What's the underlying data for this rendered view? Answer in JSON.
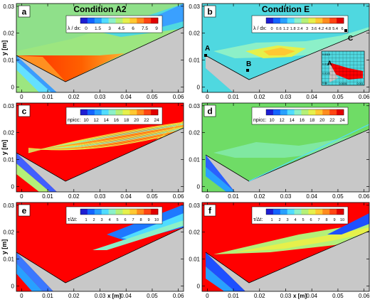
{
  "chart_data": [
    {
      "type": "heatmap",
      "panel": "a",
      "title": "Condition A2",
      "ylabel": "y [m]",
      "xlabel": "",
      "xlim": [
        -0.002,
        0.062
      ],
      "ylim": [
        -0.002,
        0.031
      ],
      "xticks": [
        "0",
        "0.01",
        "0.02",
        "0.03",
        "0.04",
        "0.05",
        "0.06"
      ],
      "yticks": [
        "0",
        "0.01",
        "0.02",
        "0.03"
      ],
      "legend": {
        "label": "λ / dx:",
        "ticks": [
          "0",
          "1.5",
          "3",
          "4.5",
          "6",
          "7.5",
          "9"
        ],
        "position": "top-center"
      },
      "colors": {
        "background": "#9ce680",
        "body": "#c8c8c8",
        "shock_region": "#ff0000"
      }
    },
    {
      "type": "heatmap",
      "panel": "b",
      "title": "Condition E",
      "ylabel": "",
      "xlabel": "",
      "xlim": [
        -0.002,
        0.062
      ],
      "ylim": [
        -0.002,
        0.031
      ],
      "xticks": [
        "0",
        "0.01",
        "0.02",
        "0.03",
        "0.04",
        "0.05",
        "0.06"
      ],
      "yticks": [
        "0",
        "0.01",
        "0.02",
        "0.03"
      ],
      "legend": {
        "label": "λ / dx:",
        "ticks": [
          "0",
          "0.6",
          "1.2",
          "1.8",
          "2.4",
          "3",
          "3.6",
          "4.2",
          "4.8",
          "5.4",
          "6"
        ],
        "position": "top-center"
      },
      "annotations": [
        "A",
        "B",
        "C"
      ],
      "inset": {
        "yticks": [
          "0.0115",
          "0.011",
          "0.0105",
          "0.01"
        ],
        "xticks": [
          "0",
          "0.0005",
          "0.001"
        ],
        "annotation": "A"
      },
      "colors": {
        "background": "#4fd8e0",
        "body": "#c8c8c8"
      }
    },
    {
      "type": "heatmap",
      "panel": "c",
      "ylabel": "y [m]",
      "xlabel": "",
      "xlim": [
        -0.002,
        0.062
      ],
      "ylim": [
        -0.002,
        0.031
      ],
      "xticks": [
        "0",
        "0.01",
        "0.02",
        "0.03",
        "0.04",
        "0.05",
        "0.06"
      ],
      "yticks": [
        "0",
        "0.01",
        "0.02",
        "0.03"
      ],
      "legend": {
        "label": "npicc:",
        "ticks": [
          "10",
          "12",
          "14",
          "16",
          "18",
          "20",
          "22",
          "24"
        ],
        "position": "top-center"
      },
      "colors": {
        "background": "#ff0000",
        "body": "#c8c8c8"
      }
    },
    {
      "type": "heatmap",
      "panel": "d",
      "ylabel": "",
      "xlabel": "",
      "xlim": [
        -0.002,
        0.062
      ],
      "ylim": [
        -0.002,
        0.031
      ],
      "xticks": [
        "0",
        "0.01",
        "0.02",
        "0.03",
        "0.04",
        "0.05",
        "0.06"
      ],
      "yticks": [
        "0",
        "0.01",
        "0.02",
        "0.03"
      ],
      "legend": {
        "label": "npicc:",
        "ticks": [
          "10",
          "12",
          "14",
          "16",
          "18",
          "20",
          "22",
          "24"
        ],
        "position": "top-center"
      },
      "colors": {
        "background": "#6fdc66",
        "body": "#c8c8c8"
      }
    },
    {
      "type": "heatmap",
      "panel": "e",
      "ylabel": "y [m]",
      "xlabel": "x [m]",
      "xlim": [
        -0.002,
        0.062
      ],
      "ylim": [
        -0.002,
        0.031
      ],
      "xticks": [
        "0",
        "0.01",
        "0.02",
        "0.03",
        "0.04",
        "0.05",
        "0.06"
      ],
      "yticks": [
        "0",
        "0.01",
        "0.02",
        "0.03"
      ],
      "legend": {
        "label": "τ/Δt:",
        "ticks": [
          "1",
          "2",
          "3",
          "4",
          "5",
          "6",
          "7",
          "8",
          "9",
          "10"
        ],
        "position": "top-center"
      },
      "colors": {
        "background": "#ff0000",
        "body": "#c8c8c8"
      }
    },
    {
      "type": "heatmap",
      "panel": "f",
      "ylabel": "",
      "xlabel": "x [m]",
      "xlim": [
        -0.002,
        0.062
      ],
      "ylim": [
        -0.002,
        0.031
      ],
      "xticks": [
        "0",
        "0.01",
        "0.02",
        "0.03",
        "0.04",
        "0.05",
        "0.06"
      ],
      "yticks": [
        "0",
        "0.01",
        "0.02",
        "0.03"
      ],
      "legend": {
        "label": "τ/Δt:",
        "ticks": [
          "1",
          "2",
          "3",
          "4",
          "5",
          "6",
          "7",
          "8",
          "9",
          "10"
        ],
        "position": "top-center"
      },
      "colors": {
        "background": "#ff0000",
        "body": "#c8c8c8"
      }
    }
  ],
  "colorbar_colors": [
    "#1e1ed2",
    "#1464ff",
    "#28a0ff",
    "#50dcff",
    "#8cf0c8",
    "#b4f078",
    "#e6f04b",
    "#ffc832",
    "#ff8c1e",
    "#ff4614",
    "#e10000"
  ]
}
